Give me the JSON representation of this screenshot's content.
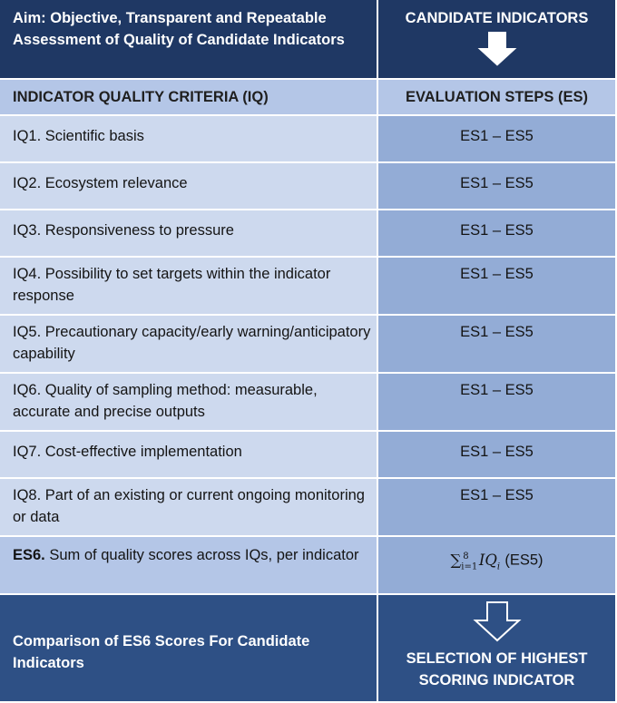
{
  "header": {
    "aim": "Aim: Objective, Transparent and Repeatable Assessment of Quality of Candidate Indicators",
    "candidates": "CANDIDATE INDICATORS"
  },
  "columns": {
    "criteria": "INDICATOR QUALITY CRITERIA (IQ)",
    "steps": "EVALUATION STEPS (ES)"
  },
  "rows": [
    {
      "criterion": "IQ1. Scientific basis",
      "steps": "ES1 – ES5"
    },
    {
      "criterion": "IQ2. Ecosystem relevance",
      "steps": "ES1 – ES5"
    },
    {
      "criterion": "IQ3. Responsiveness to pressure",
      "steps": "ES1 – ES5"
    },
    {
      "criterion": "IQ4. Possibility to set targets within   the indicator response",
      "steps": "ES1 – ES5"
    },
    {
      "criterion": "IQ5. Precautionary capacity/early warning/anticipatory capability",
      "steps": "ES1 – ES5"
    },
    {
      "criterion": "IQ6. Quality of sampling method: measurable, accurate and precise outputs",
      "steps": "ES1 – ES5"
    },
    {
      "criterion": "IQ7. Cost-effective implementation",
      "steps": "ES1 – ES5"
    },
    {
      "criterion": "IQ8. Part of an existing or current ongoing monitoring or data",
      "steps": "ES1 – ES5"
    }
  ],
  "es6": {
    "label": "ES6.",
    "text": " Sum of quality scores across IQs, per indicator",
    "formula_sum": "∑",
    "formula_lower": "i=1",
    "formula_upper": "8",
    "formula_var": "IQ",
    "formula_index": "i",
    "formula_suffix": "(ES5)"
  },
  "footer": {
    "comparison": "Comparison of ES6 Scores For Candidate Indicators",
    "selection": "SELECTION OF HIGHEST SCORING INDICATOR"
  },
  "colors": {
    "dark_navy": "#1f3864",
    "mid_blue": "#2e5085",
    "header_light": "#b4c6e7",
    "criteria_cell": "#cdd9ee",
    "steps_cell": "#93acd6"
  }
}
